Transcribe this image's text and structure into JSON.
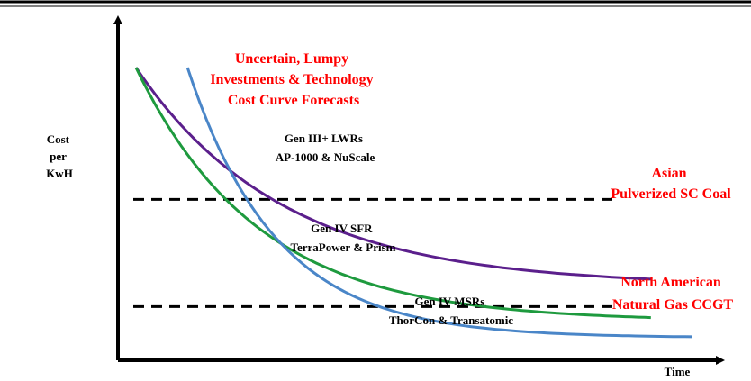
{
  "chart_data": {
    "type": "line",
    "xlabel": "Time",
    "ylabel_lines": [
      "Cost",
      "per",
      "KwH"
    ],
    "title_lines": [
      "Uncertain, Lumpy",
      "Investments & Technology",
      "Cost Curve Forecasts"
    ],
    "series": [
      {
        "label_lines": [
          "Gen III+ LWRs",
          "AP-1000 & NuScale"
        ],
        "color": "#5b1f8c",
        "start": [
          0.0,
          10.0
        ],
        "end": [
          10.0,
          2.3
        ],
        "decay": 0.35
      },
      {
        "label_lines": [
          "Gen IV SFR",
          "TerraPower & Prism"
        ],
        "color": "#1e9a3e",
        "start": [
          0.0,
          10.0
        ],
        "end": [
          10.0,
          0.9
        ],
        "decay": 0.42
      },
      {
        "label_lines": [
          "Gen IV MSRs",
          "ThorCon & Transatomic"
        ],
        "color": "#4a86c8",
        "start": [
          1.0,
          10.0
        ],
        "end": [
          10.8,
          0.2
        ],
        "decay": 0.58
      }
    ],
    "reference_lines": [
      {
        "y": 5.2,
        "label_lines": [
          "Asian",
          "Pulverized SC Coal"
        ],
        "color": "#ff0000"
      },
      {
        "y": 1.3,
        "label_lines": [
          "North American",
          "Natural Gas CCGT"
        ],
        "color": "#ff0000"
      }
    ],
    "xlim": [
      0,
      11
    ],
    "ylim": [
      0,
      10
    ],
    "grid": false,
    "legend": "none"
  }
}
